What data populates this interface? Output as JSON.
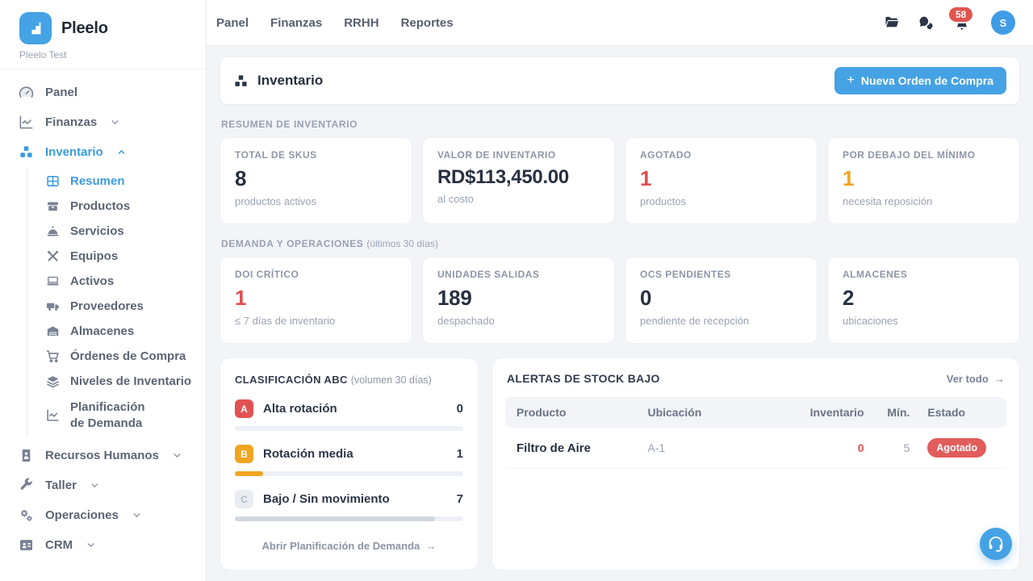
{
  "brand": {
    "name": "Pleelo",
    "workspace": "Pleelo Test"
  },
  "topnav": {
    "links": [
      "Panel",
      "Finanzas",
      "RRHH",
      "Reportes"
    ],
    "notification_count": "58",
    "avatar_initial": "S"
  },
  "sidebar": {
    "panel": "Panel",
    "finanzas": "Finanzas",
    "inventario": "Inventario",
    "sub": {
      "resumen": "Resumen",
      "productos": "Productos",
      "servicios": "Servicios",
      "equipos": "Equipos",
      "activos": "Activos",
      "proveedores": "Proveedores",
      "almacenes": "Almacenes",
      "ordenes": "Órdenes de Compra",
      "niveles": "Niveles de Inventario",
      "planificacion_line1": "Planificación",
      "planificacion_line2": "de Demanda"
    },
    "rrhh": "Recursos Humanos",
    "taller": "Taller",
    "operaciones": "Operaciones",
    "crm": "CRM"
  },
  "header": {
    "title": "Inventario",
    "new_order_button": "Nueva Orden de Compra"
  },
  "sections": {
    "resumen": "RESUMEN DE INVENTARIO",
    "demanda": "DEMANDA Y OPERACIONES",
    "demanda_note": "(últimos 30 días)"
  },
  "stats_row1": [
    {
      "label": "TOTAL DE SKUS",
      "value": "8",
      "sub": "productos activos"
    },
    {
      "label": "VALOR DE INVENTARIO",
      "value": "RD$113,450.00",
      "sub": "al costo"
    },
    {
      "label": "AGOTADO",
      "value": "1",
      "sub": "productos"
    },
    {
      "label": "POR DEBAJO DEL MÍNIMO",
      "value": "1",
      "sub": "necesita reposición"
    }
  ],
  "stats_row2": [
    {
      "label": "DOI CRÍTICO",
      "value": "1",
      "sub": "≤ 7 días de inventario"
    },
    {
      "label": "UNIDADES SALIDAS",
      "value": "189",
      "sub": "despachado"
    },
    {
      "label": "OCS PENDIENTES",
      "value": "0",
      "sub": "pendiente de recepción"
    },
    {
      "label": "ALMACENES",
      "value": "2",
      "sub": "ubicaciones"
    }
  ],
  "abc": {
    "title": "CLASIFICACIÓN ABC",
    "note": "(volumen 30 días)",
    "rows": [
      {
        "letter": "A",
        "name": "Alta rotación",
        "count": "0",
        "pct": 0
      },
      {
        "letter": "B",
        "name": "Rotación media",
        "count": "1",
        "pct": 12.5
      },
      {
        "letter": "C",
        "name": "Bajo / Sin movimiento",
        "count": "7",
        "pct": 87.5
      }
    ],
    "footer_link": "Abrir Planificación de Demanda",
    "arrow": "→"
  },
  "alerts": {
    "title": "ALERTAS DE STOCK BAJO",
    "view_all": "Ver todo",
    "arrow": "→",
    "columns": [
      "Producto",
      "Ubicación",
      "Inventario",
      "Mín.",
      "Estado"
    ],
    "rows": [
      {
        "producto": "Filtro de Aire",
        "ubicacion": "A-1",
        "inventario": "0",
        "min": "5",
        "estado": "Agotado"
      }
    ]
  },
  "misc": {
    "plus": "+"
  },
  "colors": {
    "accent_blue": "#45a2e4",
    "active_blue": "#3b9be2",
    "red": "#e04f4f",
    "amber": "#f0a521",
    "dark_navy": "#273142",
    "badge_red": "#e25c5c",
    "background": "#f2f4f8"
  }
}
